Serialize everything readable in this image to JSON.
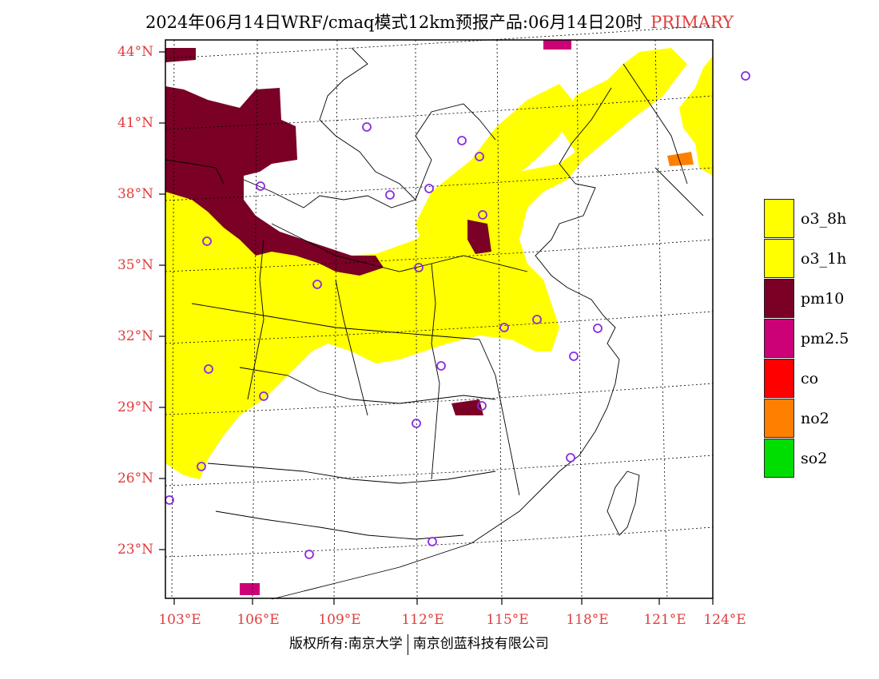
{
  "title": {
    "main": "2024年06月14日WRF/cmaq模式12km预报产品:06月14日20时",
    "tag": "PRIMARY"
  },
  "colors": {
    "frame": "#000000",
    "axis_label": "#e23c3c",
    "o3_8h": "#ffff00",
    "o3_1h": "#ffff00",
    "pm10": "#7a0026",
    "pm2_5": "#cc0077",
    "co": "#ff0000",
    "no2": "#ff7f00",
    "so2": "#00dd00",
    "station_marker": "#8a2be2"
  },
  "axes": {
    "lat_labels": [
      "44°N",
      "41°N",
      "38°N",
      "35°N",
      "32°N",
      "29°N",
      "26°N",
      "23°N"
    ],
    "lon_labels": [
      "103°E",
      "106°E",
      "109°E",
      "112°E",
      "115°E",
      "118°E",
      "121°E",
      "124°E"
    ]
  },
  "legend": [
    {
      "key": "o3_8h",
      "label": "o3_8h",
      "color": "#ffff00"
    },
    {
      "key": "o3_1h",
      "label": "o3_1h",
      "color": "#ffff00"
    },
    {
      "key": "pm10",
      "label": "pm10",
      "color": "#7a0026"
    },
    {
      "key": "pm2_5",
      "label": "pm2.5",
      "color": "#cc0077"
    },
    {
      "key": "co",
      "label": "co",
      "color": "#ff0000"
    },
    {
      "key": "no2",
      "label": "no2",
      "color": "#ff7f00"
    },
    {
      "key": "so2",
      "label": "so2",
      "color": "#00dd00"
    }
  ],
  "footer": {
    "left": "版权所有:南京大学",
    "right": "南京创蓝科技有限公司"
  }
}
